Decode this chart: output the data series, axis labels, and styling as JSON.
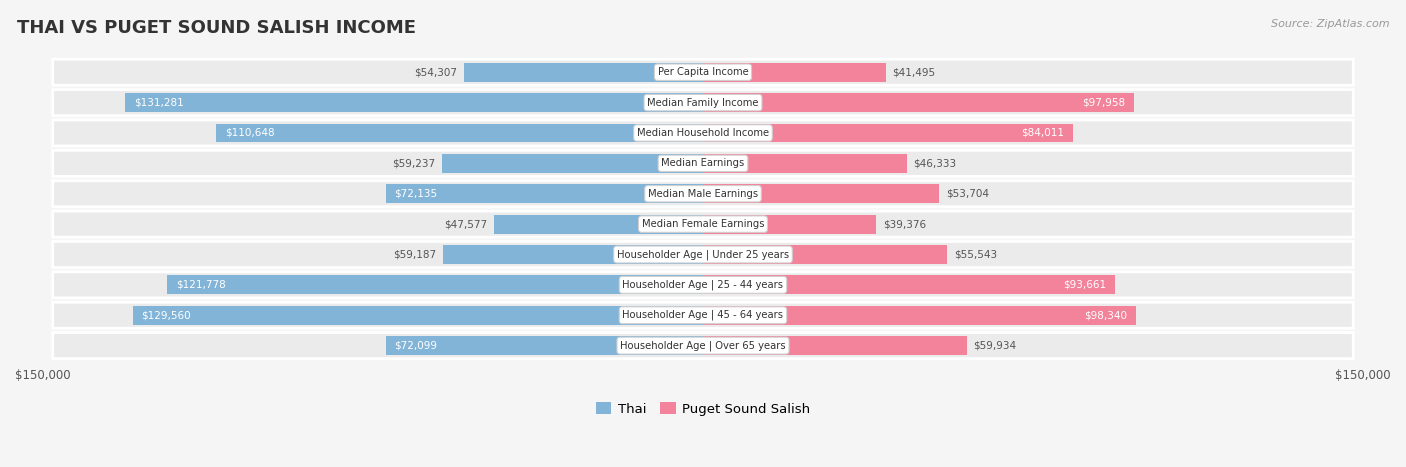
{
  "title": "THAI VS PUGET SOUND SALISH INCOME",
  "source": "Source: ZipAtlas.com",
  "categories": [
    "Per Capita Income",
    "Median Family Income",
    "Median Household Income",
    "Median Earnings",
    "Median Male Earnings",
    "Median Female Earnings",
    "Householder Age | Under 25 years",
    "Householder Age | 25 - 44 years",
    "Householder Age | 45 - 64 years",
    "Householder Age | Over 65 years"
  ],
  "thai_values": [
    54307,
    131281,
    110648,
    59237,
    72135,
    47577,
    59187,
    121778,
    129560,
    72099
  ],
  "puget_values": [
    41495,
    97958,
    84011,
    46333,
    53704,
    39376,
    55543,
    93661,
    98340,
    59934
  ],
  "thai_labels": [
    "$54,307",
    "$131,281",
    "$110,648",
    "$59,237",
    "$72,135",
    "$47,577",
    "$59,187",
    "$121,778",
    "$129,560",
    "$72,099"
  ],
  "puget_labels": [
    "$41,495",
    "$97,958",
    "$84,011",
    "$46,333",
    "$53,704",
    "$39,376",
    "$55,543",
    "$93,661",
    "$98,340",
    "$59,934"
  ],
  "thai_color": "#82b4d8",
  "puget_color": "#f2839a",
  "max_value": 150000,
  "bg_color": "#f5f5f5",
  "row_bg": "#e8e8e8",
  "label_color_inside": "#ffffff",
  "label_color_outside": "#555555",
  "thai_inside_threshold": 70000,
  "puget_inside_threshold": 60000,
  "legend_thai": "Thai",
  "legend_puget": "Puget Sound Salish"
}
